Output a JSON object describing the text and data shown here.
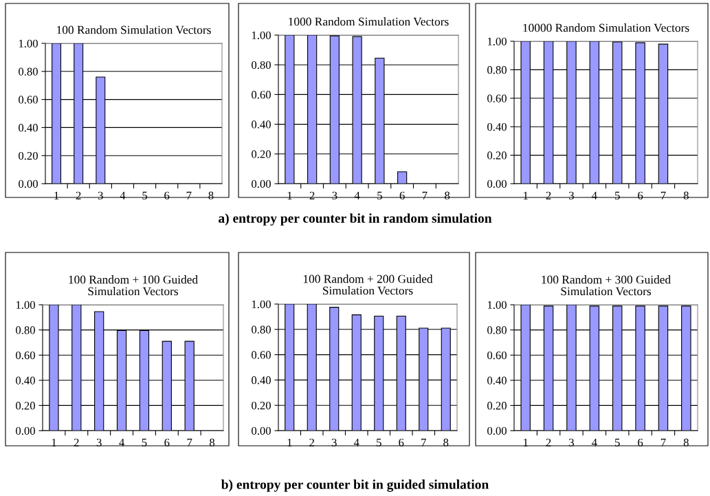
{
  "chart_data": [
    {
      "type": "bar",
      "title": "100 Random Simulation Vectors",
      "categories": [
        "1",
        "2",
        "3",
        "4",
        "5",
        "6",
        "7",
        "8"
      ],
      "values": [
        1.0,
        1.0,
        0.76,
        null,
        null,
        null,
        null,
        null
      ],
      "color": "#9999ff",
      "ylim": [
        0,
        1
      ],
      "yticks": [
        {
          "value": 0,
          "label": "0.00"
        },
        {
          "value": 0.2,
          "label": "0.20"
        },
        {
          "value": 0.4,
          "label": "0.40"
        },
        {
          "value": 0.6,
          "label": "0.60"
        },
        {
          "value": 0.8,
          "label": "0.80"
        },
        {
          "value": 1,
          "label": "1.00"
        }
      ],
      "grid": "y",
      "legend": false
    },
    {
      "type": "bar",
      "title": "1000 Random Simulation Vectors",
      "categories": [
        "1",
        "2",
        "3",
        "4",
        "5",
        "6",
        "7",
        "8"
      ],
      "values": [
        1.0,
        1.0,
        0.995,
        0.99,
        0.845,
        0.08,
        null,
        null
      ],
      "color": "#9999ff",
      "ylim": [
        0,
        1
      ],
      "yticks": [
        {
          "value": 0,
          "label": "0.00"
        },
        {
          "value": 0.2,
          "label": "0.20"
        },
        {
          "value": 0.4,
          "label": "0.40"
        },
        {
          "value": 0.6,
          "label": "0.60"
        },
        {
          "value": 0.8,
          "label": "0.80"
        },
        {
          "value": 1,
          "label": "1.00"
        }
      ],
      "grid": "y",
      "legend": false,
      "annotations": [
        "a) entropy per counter bit in random simulation"
      ]
    },
    {
      "type": "bar",
      "title": "10000 Random Simulation Vectors",
      "categories": [
        "1",
        "2",
        "3",
        "4",
        "5",
        "6",
        "7",
        "8"
      ],
      "values": [
        1.0,
        1.0,
        1.0,
        1.0,
        0.995,
        0.99,
        0.98,
        null
      ],
      "color": "#9999ff",
      "ylim": [
        0,
        1
      ],
      "yticks": [
        {
          "value": 0,
          "label": "0.00"
        },
        {
          "value": 0.2,
          "label": "0.20"
        },
        {
          "value": 0.4,
          "label": "0.40"
        },
        {
          "value": 0.6,
          "label": "0.60"
        },
        {
          "value": 0.8,
          "label": "0.80"
        },
        {
          "value": 1,
          "label": "1.00"
        }
      ],
      "grid": "y",
      "legend": false
    },
    {
      "type": "bar",
      "title": "100 Random + 100 Guided\nSimulation Vectors",
      "categories": [
        "1",
        "2",
        "3",
        "4",
        "5",
        "6",
        "7",
        "8"
      ],
      "values": [
        1.0,
        1.0,
        0.945,
        0.795,
        0.795,
        0.71,
        0.71,
        null
      ],
      "color": "#9999ff",
      "ylim": [
        0,
        1
      ],
      "yticks": [
        {
          "value": 0,
          "label": "0.00"
        },
        {
          "value": 0.2,
          "label": "0.20"
        },
        {
          "value": 0.4,
          "label": "0.40"
        },
        {
          "value": 0.6,
          "label": "0.60"
        },
        {
          "value": 0.8,
          "label": "0.80"
        },
        {
          "value": 1,
          "label": "1.00"
        }
      ],
      "grid": "y",
      "legend": false
    },
    {
      "type": "bar",
      "title": "100 Random + 200 Guided\nSimulation Vectors",
      "categories": [
        "1",
        "2",
        "3",
        "4",
        "5",
        "6",
        "7",
        "8"
      ],
      "values": [
        1.0,
        1.0,
        0.975,
        0.915,
        0.905,
        0.905,
        0.81,
        0.81
      ],
      "color": "#9999ff",
      "ylim": [
        0,
        1
      ],
      "yticks": [
        {
          "value": 0,
          "label": "0.00"
        },
        {
          "value": 0.2,
          "label": "0.20"
        },
        {
          "value": 0.4,
          "label": "0.40"
        },
        {
          "value": 0.6,
          "label": "0.60"
        },
        {
          "value": 0.8,
          "label": "0.80"
        },
        {
          "value": 1,
          "label": "1.00"
        }
      ],
      "grid": "y",
      "legend": false,
      "annotations": [
        "b) entropy per counter bit in guided simulation"
      ]
    },
    {
      "type": "bar",
      "title": "100 Random + 300 Guided\nSimulation Vectors",
      "categories": [
        "1",
        "2",
        "3",
        "4",
        "5",
        "6",
        "7",
        "8"
      ],
      "values": [
        1.0,
        0.99,
        1.0,
        0.99,
        0.99,
        0.99,
        0.99,
        0.99
      ],
      "color": "#9999ff",
      "ylim": [
        0,
        1
      ],
      "yticks": [
        {
          "value": 0,
          "label": "0.00"
        },
        {
          "value": 0.2,
          "label": "0.20"
        },
        {
          "value": 0.4,
          "label": "0.40"
        },
        {
          "value": 0.6,
          "label": "0.60"
        },
        {
          "value": 0.8,
          "label": "0.80"
        },
        {
          "value": 1,
          "label": "1.00"
        }
      ],
      "grid": "y",
      "legend": false
    }
  ]
}
